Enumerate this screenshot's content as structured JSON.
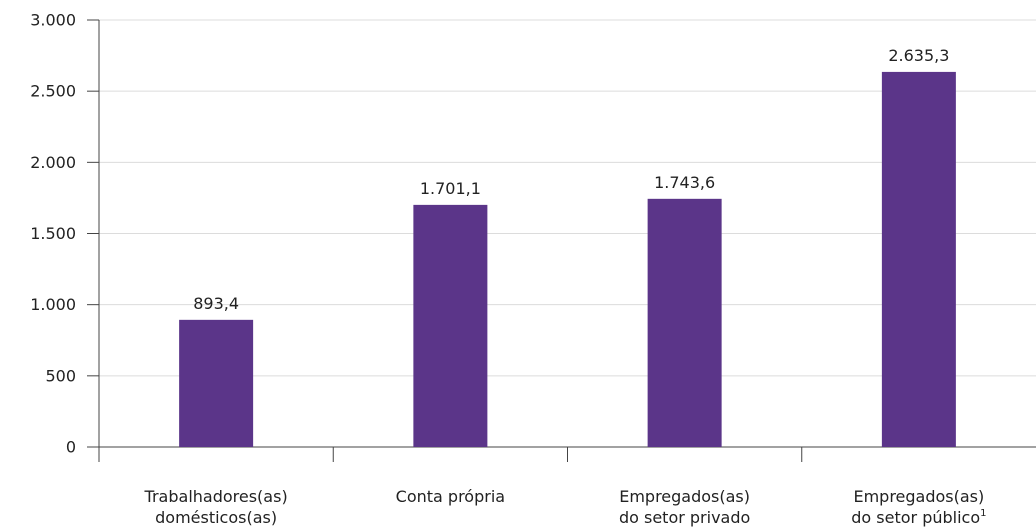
{
  "chart_data": {
    "type": "bar",
    "categories": [
      {
        "lines": [
          "Trabalhadores(as)",
          "domésticos(as)"
        ],
        "sup": ""
      },
      {
        "lines": [
          "Conta própria"
        ],
        "sup": ""
      },
      {
        "lines": [
          "Empregados(as)",
          "do setor privado"
        ],
        "sup": ""
      },
      {
        "lines": [
          "Empregados(as)",
          "do setor público"
        ],
        "sup": "1"
      }
    ],
    "values": [
      893.4,
      1701.1,
      1743.6,
      2635.3
    ],
    "value_labels": [
      "893,4",
      "1.701,1",
      "1.743,6",
      "2.635,3"
    ],
    "ylim": [
      0,
      3000
    ],
    "yticks": [
      0,
      500,
      1000,
      1500,
      2000,
      2500,
      3000
    ],
    "ytick_labels": [
      "0",
      "500",
      "1.000",
      "1.500",
      "2.000",
      "2.500",
      "3.000"
    ],
    "grid": true,
    "colors": {
      "bar": "#5b3589",
      "grid": "#dcdcdc",
      "axis": "#444444"
    }
  }
}
